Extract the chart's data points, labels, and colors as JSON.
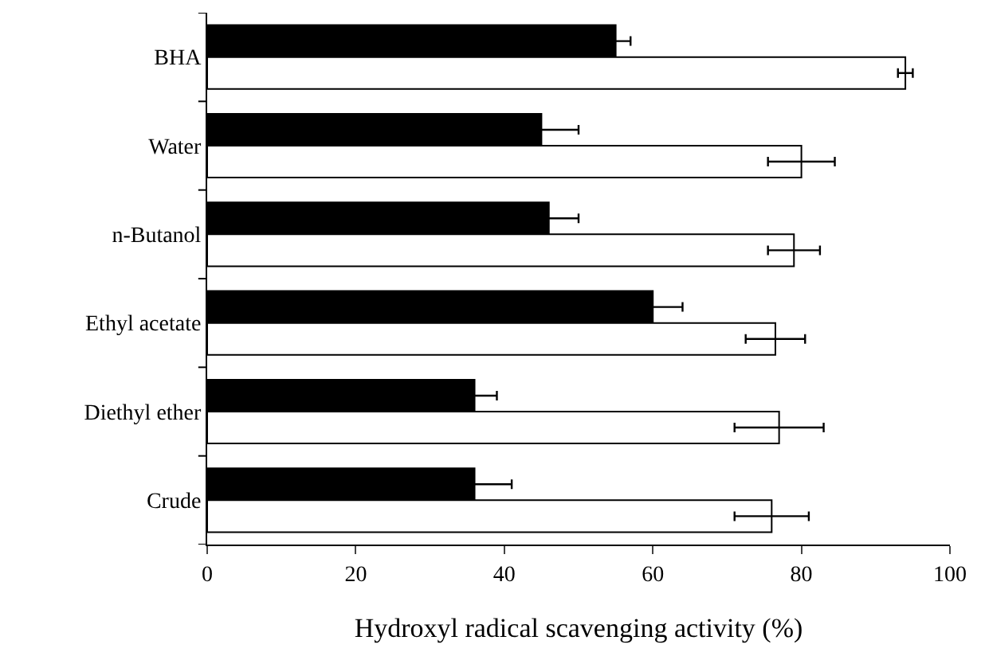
{
  "chart_data": {
    "type": "bar",
    "orientation": "horizontal",
    "xlabel": "Hydroxyl radical scavenging activity (%)",
    "categories": [
      "BHA",
      "Water",
      "n-Butanol",
      "Ethyl acetate",
      "Diethyl ether",
      "Crude"
    ],
    "series": [
      {
        "color": "#000000",
        "values": [
          55,
          45,
          46,
          60,
          36,
          36
        ],
        "errors": [
          2,
          5,
          4,
          4,
          3,
          5
        ]
      },
      {
        "color": "#ffffff",
        "values": [
          94,
          80,
          79,
          76.5,
          77,
          76
        ],
        "errors": [
          1,
          4.5,
          3.5,
          4,
          6,
          5
        ]
      }
    ],
    "xlim": [
      0,
      100
    ],
    "xticks": [
      0,
      20,
      40,
      60,
      80,
      100
    ],
    "grid": false
  }
}
